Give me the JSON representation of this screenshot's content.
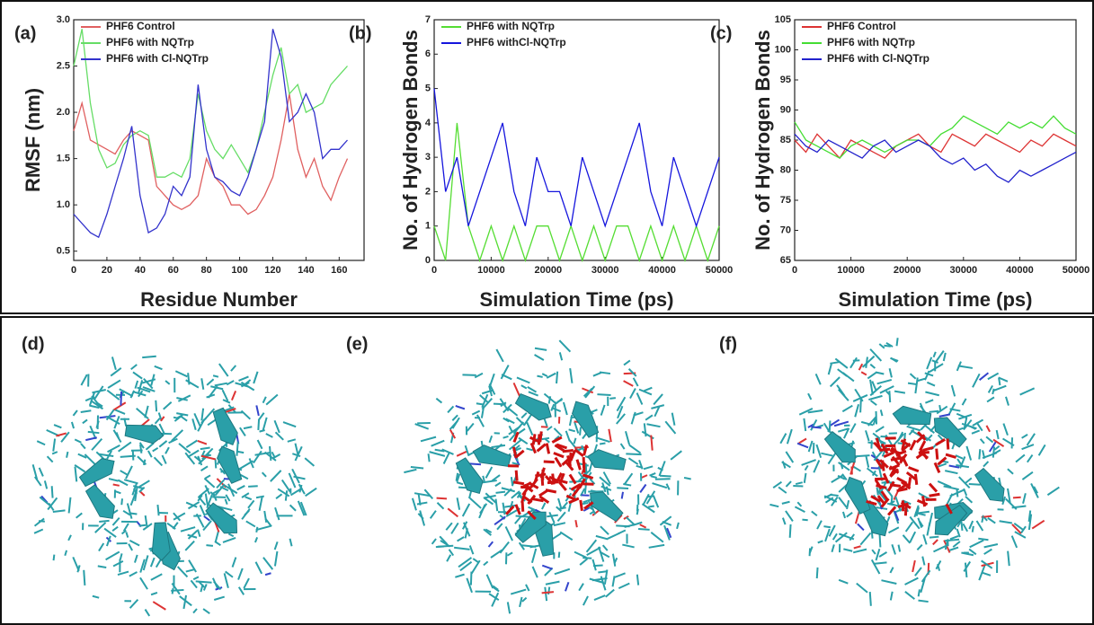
{
  "chart_data": [
    {
      "type": "line",
      "panel_label": "(a)",
      "x_label": "Residue Number",
      "y_label": "RMSF (nm)",
      "x": [
        0,
        5,
        10,
        15,
        20,
        25,
        30,
        35,
        40,
        45,
        50,
        55,
        60,
        65,
        70,
        75,
        80,
        85,
        90,
        95,
        100,
        105,
        110,
        115,
        120,
        125,
        130,
        135,
        140,
        145,
        150,
        155,
        160,
        165
      ],
      "series": [
        {
          "name": "PHF6 Control",
          "color": "#e06060",
          "values": [
            1.8,
            2.1,
            1.7,
            1.65,
            1.6,
            1.55,
            1.7,
            1.8,
            1.75,
            1.7,
            1.2,
            1.1,
            1.0,
            0.95,
            1.0,
            1.1,
            1.5,
            1.3,
            1.2,
            1.0,
            1.0,
            0.9,
            0.95,
            1.1,
            1.3,
            1.7,
            2.2,
            1.6,
            1.3,
            1.5,
            1.2,
            1.05,
            1.3,
            1.5
          ]
        },
        {
          "name": "PHF6 with NQTrp",
          "color": "#66dd66",
          "values": [
            2.5,
            2.9,
            2.1,
            1.6,
            1.4,
            1.45,
            1.65,
            1.75,
            1.8,
            1.75,
            1.3,
            1.3,
            1.35,
            1.3,
            1.5,
            2.2,
            1.8,
            1.6,
            1.5,
            1.65,
            1.5,
            1.35,
            1.6,
            2.0,
            2.4,
            2.7,
            2.2,
            2.3,
            2.0,
            2.05,
            2.1,
            2.3,
            2.4,
            2.5
          ]
        },
        {
          "name": "PHF6 with Cl-NQTrp",
          "color": "#3333cc",
          "values": [
            0.9,
            0.8,
            0.7,
            0.65,
            0.9,
            1.2,
            1.5,
            1.85,
            1.1,
            0.7,
            0.75,
            0.9,
            1.2,
            1.1,
            1.3,
            2.3,
            1.6,
            1.3,
            1.25,
            1.15,
            1.1,
            1.3,
            1.6,
            1.9,
            2.9,
            2.6,
            1.9,
            2.0,
            2.2,
            2.0,
            1.5,
            1.6,
            1.6,
            1.7
          ]
        }
      ],
      "xlim": [
        0,
        175
      ],
      "xticks": [
        0,
        20,
        40,
        60,
        80,
        100,
        120,
        140,
        160
      ],
      "ylim": [
        0.4,
        3.0
      ],
      "yticks": [
        0.5,
        {
          "value": 1,
          "label": "1.0"
        },
        1.5,
        {
          "value": 2,
          "label": "2.0"
        },
        2.5,
        {
          "value": 3,
          "label": "3.0"
        }
      ]
    },
    {
      "type": "line",
      "panel_label": "(b)",
      "x_label": "Simulation Time (ps)",
      "y_label": "No. of Hydrogen Bonds",
      "x": [
        0,
        2000,
        4000,
        6000,
        8000,
        10000,
        12000,
        14000,
        16000,
        18000,
        20000,
        22000,
        24000,
        26000,
        28000,
        30000,
        32000,
        34000,
        36000,
        38000,
        40000,
        42000,
        44000,
        46000,
        48000,
        50000
      ],
      "series": [
        {
          "name": "PHF6 with NQTrp",
          "color": "#55dd33",
          "values": [
            1,
            0,
            4,
            1,
            0,
            1,
            0,
            1,
            0,
            1,
            1,
            0,
            1,
            0,
            1,
            0,
            1,
            1,
            0,
            1,
            0,
            1,
            0,
            1,
            0,
            1
          ]
        },
        {
          "name": "PHF6 withCl-NQTrp",
          "color": "#1515dd",
          "values": [
            5,
            2,
            3,
            1,
            2,
            3,
            4,
            2,
            1,
            3,
            2,
            2,
            1,
            3,
            2,
            1,
            2,
            3,
            4,
            2,
            1,
            3,
            2,
            1,
            2,
            3
          ]
        }
      ],
      "xlim": [
        0,
        50000
      ],
      "xticks": [
        0,
        10000,
        20000,
        30000,
        40000,
        50000
      ],
      "ylim": [
        0,
        7
      ],
      "yticks": [
        0,
        1,
        2,
        3,
        4,
        5,
        6,
        7
      ]
    },
    {
      "type": "line",
      "panel_label": "(c)",
      "x_label": "Simulation Time (ps)",
      "y_label": "No. of Hydrogen Bonds",
      "x": [
        0,
        2000,
        4000,
        6000,
        8000,
        10000,
        12000,
        14000,
        16000,
        18000,
        20000,
        22000,
        24000,
        26000,
        28000,
        30000,
        32000,
        34000,
        36000,
        38000,
        40000,
        42000,
        44000,
        46000,
        48000,
        50000
      ],
      "series": [
        {
          "name": "PHF6 Control",
          "color": "#dd3333",
          "values": [
            85,
            83,
            86,
            84,
            82,
            85,
            84,
            83,
            82,
            84,
            85,
            86,
            84,
            83,
            86,
            85,
            84,
            86,
            85,
            84,
            83,
            85,
            84,
            86,
            85,
            84
          ]
        },
        {
          "name": "PHF6 with NQTrp",
          "color": "#44dd33",
          "values": [
            88,
            85,
            84,
            83,
            82,
            84,
            85,
            84,
            83,
            84,
            85,
            85,
            84,
            86,
            87,
            89,
            88,
            87,
            86,
            88,
            87,
            88,
            87,
            89,
            87,
            86
          ]
        },
        {
          "name": "PHF6 with Cl-NQTrp",
          "color": "#2222cc",
          "values": [
            86,
            84,
            83,
            85,
            84,
            83,
            82,
            84,
            85,
            83,
            84,
            85,
            84,
            82,
            81,
            82,
            80,
            81,
            79,
            78,
            80,
            79,
            80,
            81,
            82,
            83
          ]
        }
      ],
      "xlim": [
        0,
        50000
      ],
      "xticks": [
        0,
        10000,
        20000,
        30000,
        40000,
        50000
      ],
      "ylim": [
        65,
        105
      ],
      "yticks": [
        65,
        70,
        75,
        80,
        85,
        90,
        95,
        100,
        105
      ]
    }
  ],
  "panels": [
    {
      "label": "(d)"
    },
    {
      "label": "(e)"
    },
    {
      "label": "(f)"
    }
  ]
}
